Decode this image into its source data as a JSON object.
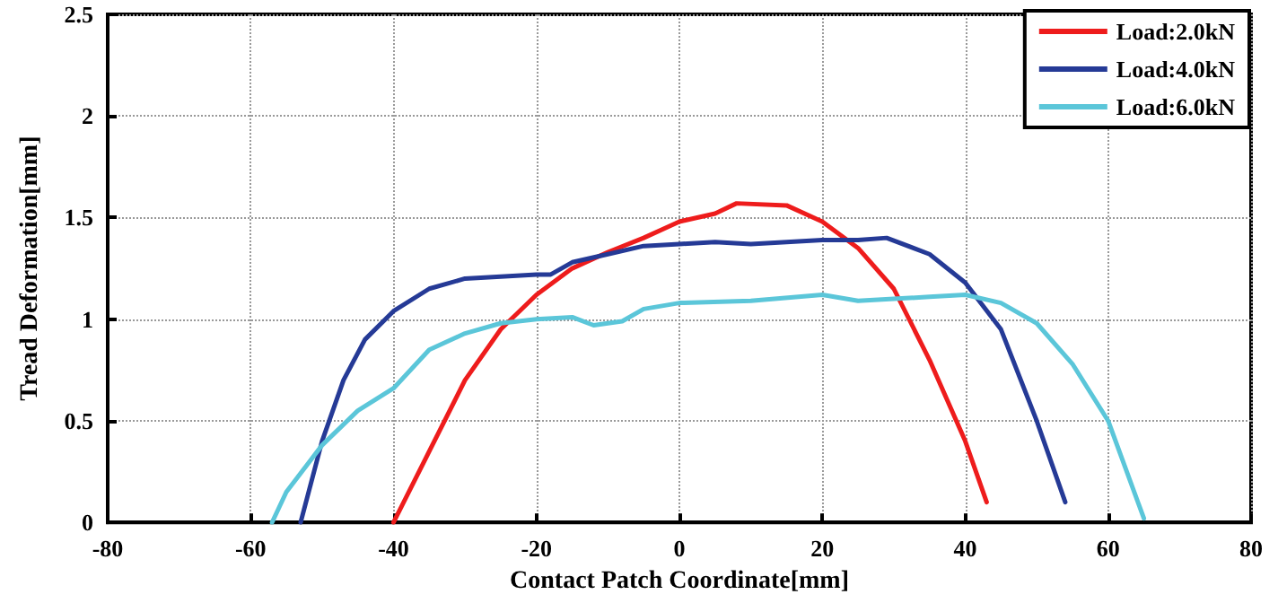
{
  "chart_data": {
    "type": "line",
    "xlabel": "Contact Patch Coordinate[mm]",
    "ylabel": "Tread Deformation[mm]",
    "xlim": [
      -80,
      80
    ],
    "xticks": [
      -80,
      -60,
      -40,
      -20,
      0,
      20,
      40,
      60,
      80
    ],
    "ylim": [
      0,
      2.5
    ],
    "yticks": [
      0,
      0.5,
      1,
      1.5,
      2,
      2.5
    ],
    "grid": true,
    "legend": "top right",
    "marker": "none",
    "line_style": "solid",
    "series": [
      {
        "name": "Load:2.0kN",
        "color": "#ee1c1c",
        "x": [
          -40,
          -35,
          -30,
          -25,
          -20,
          -15,
          -10,
          -5,
          0,
          5,
          8,
          15,
          20,
          25,
          30,
          35,
          40,
          43
        ],
        "values": [
          0,
          0.35,
          0.7,
          0.95,
          1.12,
          1.25,
          1.33,
          1.4,
          1.48,
          1.52,
          1.57,
          1.56,
          1.48,
          1.35,
          1.15,
          0.8,
          0.4,
          0.1
        ]
      },
      {
        "name": "Load:4.0kN",
        "color": "#253a96",
        "x": [
          -53,
          -50,
          -47,
          -44,
          -40,
          -35,
          -30,
          -25,
          -20,
          -18,
          -15,
          -10,
          -5,
          0,
          5,
          10,
          15,
          20,
          25,
          29,
          35,
          40,
          45,
          50,
          54
        ],
        "values": [
          0,
          0.4,
          0.7,
          0.9,
          1.04,
          1.15,
          1.2,
          1.21,
          1.22,
          1.22,
          1.28,
          1.32,
          1.36,
          1.37,
          1.38,
          1.37,
          1.38,
          1.39,
          1.39,
          1.4,
          1.32,
          1.18,
          0.95,
          0.5,
          0.1
        ]
      },
      {
        "name": "Load:6.0kN",
        "color": "#5bc6d9",
        "x": [
          -57,
          -55,
          -50,
          -45,
          -40,
          -35,
          -30,
          -25,
          -20,
          -15,
          -12,
          -8,
          -5,
          0,
          10,
          20,
          25,
          30,
          35,
          40,
          45,
          50,
          55,
          60,
          65
        ],
        "values": [
          0,
          0.15,
          0.38,
          0.55,
          0.66,
          0.85,
          0.93,
          0.98,
          1,
          1.01,
          0.97,
          0.99,
          1.05,
          1.08,
          1.09,
          1.12,
          1.09,
          1.1,
          1.11,
          1.12,
          1.08,
          0.98,
          0.78,
          0.5,
          0.02
        ]
      }
    ]
  }
}
